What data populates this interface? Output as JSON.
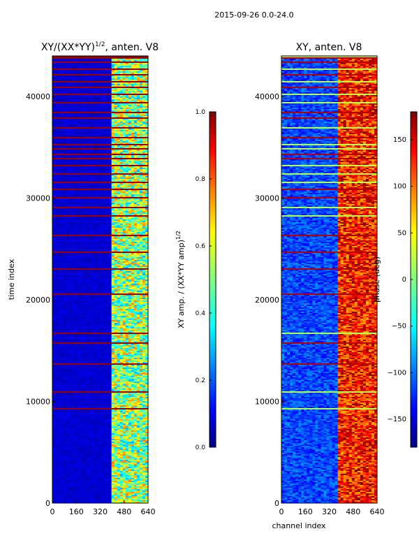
{
  "suptitle": "2015-09-26 0.0-24.0",
  "chart_data": [
    {
      "type": "heatmap",
      "title": "XY/(XX*YY)",
      "title_exponent": "1/2",
      "title_suffix": ", anten. V8",
      "xlabel": "",
      "ylabel": "time index",
      "xlim": [
        0,
        640
      ],
      "ylim": [
        0,
        44000
      ],
      "xticks": [
        0,
        160,
        320,
        480,
        640
      ],
      "yticks": [
        0,
        10000,
        20000,
        30000,
        40000
      ],
      "colorbar": {
        "label": "XY amp. / (XX*YY amp)",
        "label_exponent": "1/2",
        "range": [
          0.0,
          1.0
        ],
        "ticks": [
          "0.0",
          "0.2",
          "0.4",
          "0.6",
          "0.8",
          "1.0"
        ],
        "colormap": "jet"
      },
      "description_values": {
        "background_amplitude": 0.05,
        "band_channel_range": [
          400,
          640
        ],
        "band_amplitude_range": [
          0.3,
          0.7
        ],
        "flagged_row_amplitude": 1.0
      }
    },
    {
      "type": "heatmap",
      "title": "XY, anten. V8",
      "xlabel": "channel index",
      "ylabel": "",
      "xlim": [
        0,
        640
      ],
      "ylim": [
        0,
        44000
      ],
      "xticks": [
        0,
        160,
        320,
        480,
        640
      ],
      "yticks": [
        0,
        10000,
        20000,
        30000,
        40000
      ],
      "colorbar": {
        "label": "phase (deg)",
        "range": [
          -180,
          180
        ],
        "ticks": [
          "−150",
          "−100",
          "−50",
          "0",
          "50",
          "100",
          "150"
        ],
        "tick_values": [
          -150,
          -100,
          -50,
          0,
          50,
          100,
          150
        ],
        "colormap": "jet"
      },
      "description_values": {
        "background_phase_range": [
          -150,
          -110
        ],
        "band_channel_range": [
          380,
          640
        ],
        "band_phase_range": [
          60,
          180
        ]
      }
    }
  ],
  "colors": {
    "jet_dark_blue": "#00007f",
    "jet_blue": "#0000ff",
    "jet_cyan": "#00ffff",
    "jet_yellow": "#ffff00",
    "jet_red": "#ff0000",
    "jet_dark_red": "#7f0000"
  }
}
